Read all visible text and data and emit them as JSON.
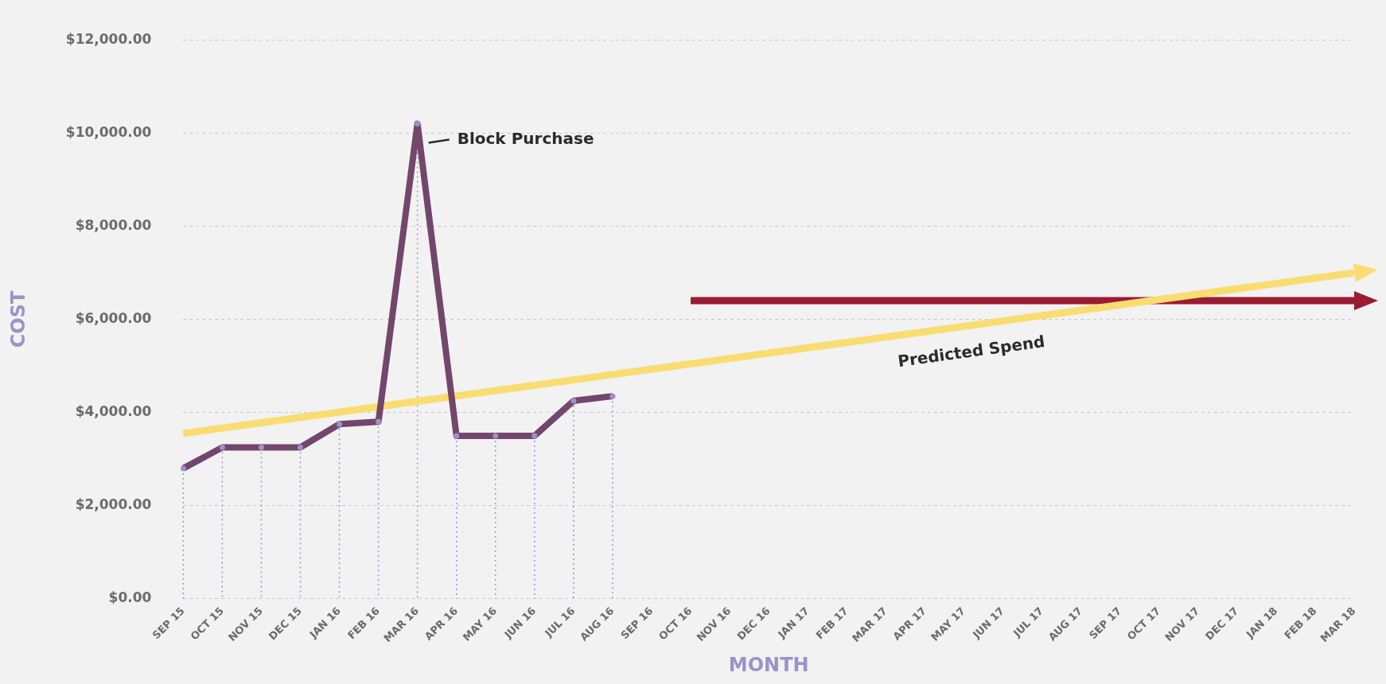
{
  "chart_data": {
    "type": "line",
    "xlabel": "MONTH",
    "ylabel": "COST",
    "categories": [
      "SEP 15",
      "OCT 15",
      "NOV 15",
      "DEC 15",
      "JAN 16",
      "FEB 16",
      "MAR 16",
      "APR 16",
      "MAY 16",
      "JUN 16",
      "JUL 16",
      "AUG 16",
      "SEP 16",
      "OCT 16",
      "NOV 16",
      "DEC 16",
      "JAN 17",
      "FEB 17",
      "MAR 17",
      "APR 17",
      "MAY 17",
      "JUN 17",
      "JUL 17",
      "AUG 17",
      "SEP 17",
      "OCT 17",
      "NOV 17",
      "DEC 17",
      "JAN 18",
      "FEB 18",
      "MAR 18"
    ],
    "series": [
      {
        "color": "#74466b",
        "values": [
          2800,
          3250,
          3250,
          3250,
          3750,
          3800,
          10200,
          3500,
          3500,
          3500,
          4250,
          4350,
          null,
          null,
          null,
          null,
          null,
          null,
          null,
          null,
          null,
          null,
          null,
          null,
          null,
          null,
          null,
          null,
          null,
          null,
          null
        ]
      },
      {
        "type": "lollipop",
        "color": "#9a93c8",
        "line_style": "dotted",
        "marker": "circle",
        "values": [
          2800,
          3250,
          3250,
          3250,
          3750,
          3800,
          10200,
          3500,
          3500,
          3500,
          4250,
          4350,
          null,
          null,
          null,
          null,
          null,
          null,
          null,
          null,
          null,
          null,
          null,
          null,
          null,
          null,
          null,
          null,
          null,
          null,
          null
        ]
      },
      {
        "type": "line",
        "color": "#f9dc72",
        "x": [
          "SEP 15",
          "MAR 18"
        ],
        "values": [
          3550,
          7000
        ]
      },
      {
        "type": "line",
        "color": "#9b1b30",
        "x": [
          "OCT 16",
          "MAR 18"
        ],
        "values": [
          6400,
          6400
        ]
      }
    ],
    "ylim": [
      0,
      12000
    ],
    "yticks": [
      {
        "value": 0,
        "label": "$0.00"
      },
      {
        "value": 2000,
        "label": "$2,000.00"
      },
      {
        "value": 4000,
        "label": "$4,000.00"
      },
      {
        "value": 6000,
        "label": "$6,000.00"
      },
      {
        "value": 8000,
        "label": "$8,000.00"
      },
      {
        "value": 10000,
        "label": "$10,000.00"
      },
      {
        "value": 12000,
        "label": "$12,000.00"
      }
    ],
    "grid": "y",
    "legend": false,
    "marker": "none",
    "line_style": "solid",
    "annotations": [
      {
        "text": "Block Purchase",
        "x": "MAR 16",
        "y": 10200
      },
      "Predicted Spend"
    ]
  }
}
